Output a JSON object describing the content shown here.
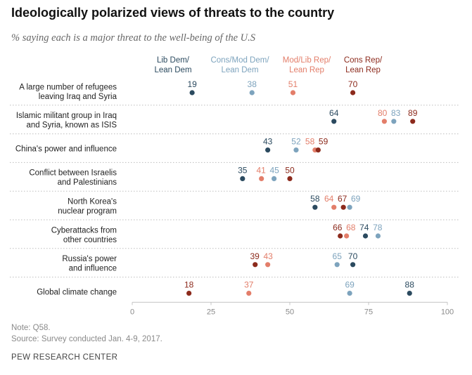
{
  "chart_data": {
    "type": "dot",
    "title": "Ideologically polarized views of threats to the country",
    "subtitle": "% saying each is a major threat to the well-being of the U.S",
    "xlim": [
      0,
      100
    ],
    "x_ticks": [
      0,
      25,
      50,
      75,
      100
    ],
    "groups": [
      {
        "name": "Lib Dem/ Lean Dem",
        "line1": "Lib Dem/",
        "line2": "Lean Dem",
        "color": "#2b4a5f"
      },
      {
        "name": "Cons/Mod Dem/ Lean Dem",
        "line1": "Cons/Mod Dem/",
        "line2": "Lean Dem",
        "color": "#7da3bd"
      },
      {
        "name": "Mod/Lib Rep/ Lean Rep",
        "line1": "Mod/Lib Rep/",
        "line2": "Lean Rep",
        "color": "#e37e6a"
      },
      {
        "name": "Cons Rep/ Lean Rep",
        "line1": "Cons Rep/",
        "line2": "Lean Rep",
        "color": "#8c2a1c"
      }
    ],
    "rows": [
      {
        "label": [
          "A large number of refugees",
          "leaving Iraq and Syria"
        ],
        "values": [
          19,
          38,
          51,
          70
        ]
      },
      {
        "label": [
          "Islamic militant group in Iraq",
          "and Syria, known as ISIS"
        ],
        "values": [
          64,
          83,
          80,
          89
        ]
      },
      {
        "label": [
          "China's power and influence"
        ],
        "values": [
          43,
          52,
          58,
          59
        ]
      },
      {
        "label": [
          "Conflict between Israelis",
          "and Palestinians"
        ],
        "values": [
          35,
          45,
          41,
          50
        ]
      },
      {
        "label": [
          "North Korea's",
          "nuclear program"
        ],
        "values": [
          58,
          69,
          64,
          67
        ]
      },
      {
        "label": [
          "Cyberattacks from",
          "other countries"
        ],
        "values": [
          74,
          78,
          68,
          66
        ]
      },
      {
        "label": [
          "Russia's power",
          "and influence"
        ],
        "values": [
          70,
          65,
          43,
          39
        ]
      },
      {
        "label": [
          "Global climate change"
        ],
        "values": [
          88,
          69,
          37,
          18
        ]
      }
    ]
  },
  "footer": {
    "note": "Note: Q58.",
    "source": "Source: Survey conducted Jan. 4-9, 2017.",
    "org": "PEW RESEARCH CENTER"
  }
}
